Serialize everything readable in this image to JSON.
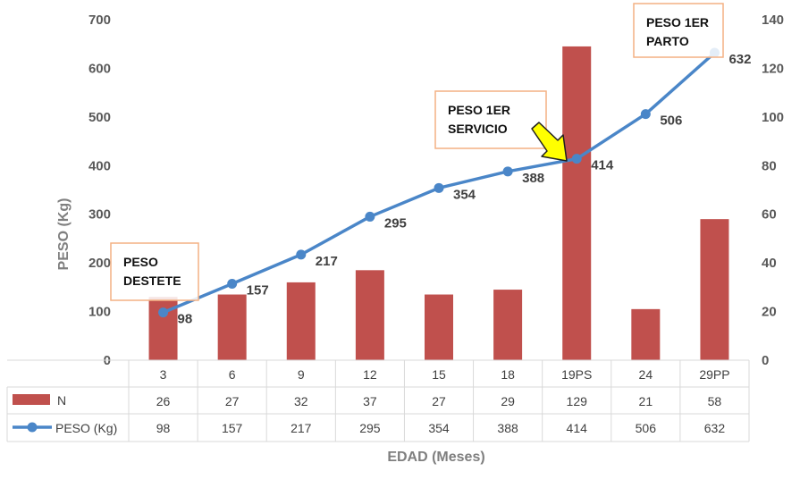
{
  "chart_data": {
    "type": "bar-line combo with data table",
    "categories": [
      "3",
      "6",
      "9",
      "12",
      "15",
      "18",
      "19PS",
      "24",
      "29PP"
    ],
    "series": [
      {
        "name": "N",
        "type": "bar",
        "axis": "right",
        "color": "#c0504d",
        "values": [
          26,
          27,
          32,
          37,
          27,
          29,
          129,
          21,
          58
        ]
      },
      {
        "name": "PESO (Kg)",
        "type": "line",
        "axis": "left",
        "color": "#4a86c8",
        "values": [
          98,
          157,
          217,
          295,
          354,
          388,
          414,
          506,
          632
        ]
      }
    ],
    "ylabel": "PESO (Kg)",
    "xlabel": "EDAD (Meses)",
    "ylim_left": [
      0,
      700
    ],
    "yticks_left": [
      "0",
      "100",
      "200",
      "300",
      "400",
      "500",
      "600",
      "700"
    ],
    "ylim_right": [
      0,
      140
    ],
    "yticks_right": [
      "0",
      "20",
      "40",
      "60",
      "80",
      "100",
      "120",
      "140"
    ],
    "annotations": [
      {
        "lines": [
          "PESO",
          "DESTETE"
        ],
        "category": "3"
      },
      {
        "lines": [
          "PESO 1ER",
          "SERVICIO"
        ],
        "category": "19PS",
        "arrow": true
      },
      {
        "lines": [
          "PESO 1ER",
          "PARTO"
        ],
        "category": "29PP"
      }
    ],
    "annotation_border_color": "#f4b183",
    "arrow_color": "#ffff00"
  }
}
